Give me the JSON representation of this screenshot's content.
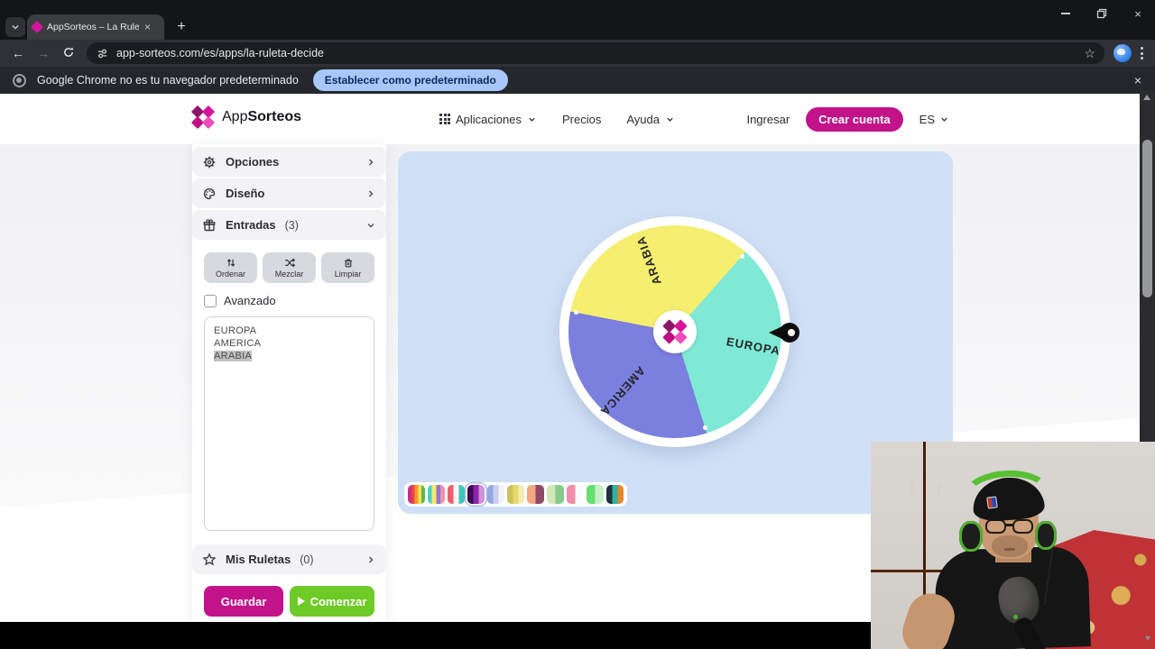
{
  "browser": {
    "tab": {
      "title": "AppSorteos – La Ruleta de la S",
      "close_label": "×"
    },
    "new_tab_label": "+",
    "window": {
      "close_label": "×"
    },
    "url": "app-sorteos.com/es/apps/la-ruleta-decide",
    "infobar": {
      "text": "Google Chrome no es tu navegador predeterminado",
      "button_label": "Establecer como predeterminado",
      "close_label": "×"
    }
  },
  "header": {
    "brand": {
      "app": "App",
      "sorteos": "Sorteos"
    },
    "nav": [
      {
        "label": "Aplicaciones"
      },
      {
        "label": "Precios"
      },
      {
        "label": "Ayuda"
      }
    ],
    "login_label": "Ingresar",
    "signup_label": "Crear cuenta",
    "lang_label": "ES"
  },
  "sidebar": {
    "sections": [
      {
        "label": "Opciones",
        "icon": "gear-icon"
      },
      {
        "label": "Diseño",
        "icon": "palette-icon"
      },
      {
        "label": "Entradas",
        "count": "(3)",
        "icon": "gift-icon"
      }
    ],
    "entry_tools": [
      {
        "label": "Ordenar",
        "icon": "sort-icon"
      },
      {
        "label": "Mezclar",
        "icon": "shuffle-icon"
      },
      {
        "label": "Limpiar",
        "icon": "trash-icon"
      }
    ],
    "advanced_label": "Avanzado",
    "entries": [
      "EUROPA",
      "AMERICA",
      "ARABIA"
    ],
    "selected_entry": "ARABIA",
    "my_wheels": {
      "label": "Mis Ruletas",
      "count": "(0)",
      "icon": "star-icon"
    },
    "save_label": "Guardar",
    "start_label": "Comenzar"
  },
  "theme": {
    "accent_magenta": "#c2138a",
    "start_green": "#6ecb27",
    "board_blue": "#cfe0f6"
  },
  "chart_data": {
    "type": "pie",
    "note": "Decision wheel with three equal 120° segments",
    "segments": [
      {
        "label": "ARABIA",
        "value": 1,
        "color": "#f6ee6e",
        "label_angle_deg": 110,
        "label_radius": 84
      },
      {
        "label": "EUROPA",
        "value": 1,
        "color": "#7fe9d5",
        "label_angle_deg": -10.4,
        "label_radius": 88
      },
      {
        "label": "AMERICA",
        "value": 1,
        "color": "#7b7fdd",
        "label_angle_deg": 228.7,
        "label_radius": 88
      }
    ],
    "conic_stops": [
      {
        "color": "#f6ee6e",
        "from": 0,
        "to": 41.5
      },
      {
        "color": "#7fe9d5",
        "from": 41.5,
        "to": 162.6
      },
      {
        "color": "#7b7fdd",
        "from": 162.6,
        "to": 281
      },
      {
        "color": "#f6ee6e",
        "from": 281,
        "to": 360
      }
    ],
    "boundary_angles_conic": [
      41.5,
      162.6,
      281
    ]
  },
  "palettes": {
    "selected_index": 3,
    "items": [
      {
        "colors": [
          "#cf2a8a",
          "#e8453c",
          "#f59b31",
          "#f7e354",
          "#58b94e"
        ]
      },
      {
        "colors": [
          "#49d0c5",
          "#f7e86e",
          "#9575cd",
          "#f48fb1"
        ]
      },
      {
        "colors": [
          "#ef5c6e",
          "#f8f3f2",
          "#3ec6b8"
        ]
      },
      {
        "colors": [
          "#3d0a54",
          "#8e24aa",
          "#ce93d8"
        ]
      },
      {
        "colors": [
          "#93a8e0",
          "#c9cfee",
          "#f3f3f5"
        ]
      },
      {
        "colors": [
          "#cfc060",
          "#e6d96a",
          "#f3ecb4"
        ]
      },
      {
        "colors": [
          "#f2a87e",
          "#8e4a66"
        ]
      },
      {
        "colors": [
          "#cfe8b4",
          "#86c989"
        ]
      },
      {
        "colors": [
          "#f48caa",
          "#fbfbfb"
        ]
      },
      {
        "colors": [
          "#67de70",
          "#c6efc7"
        ]
      },
      {
        "colors": [
          "#20303f",
          "#2bb5a0",
          "#e8842a"
        ]
      }
    ]
  },
  "webcam": {
    "heart_icon": "♥"
  }
}
